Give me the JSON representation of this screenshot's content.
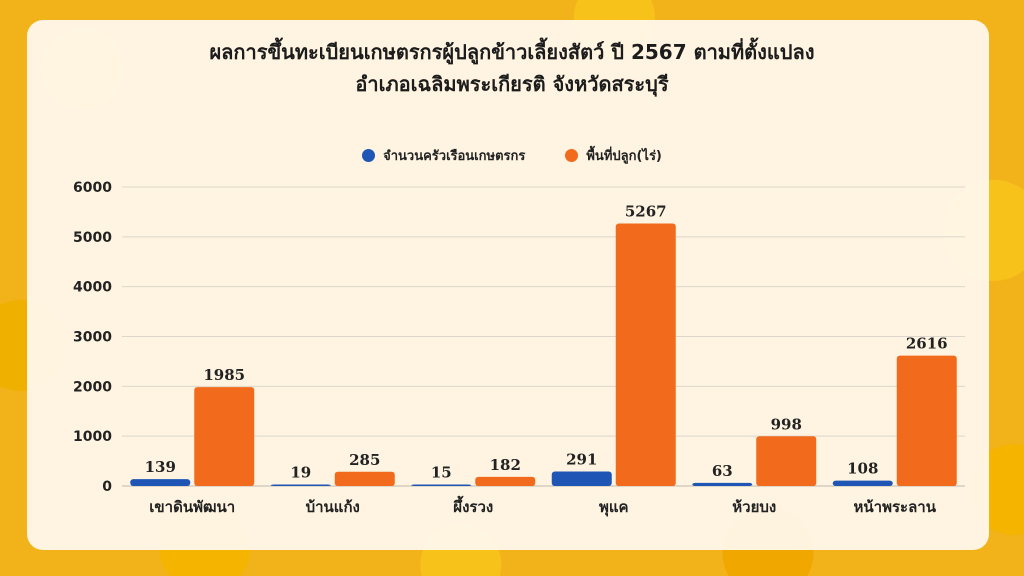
{
  "chart_data": {
    "type": "bar",
    "title": [
      "ผลการขึ้นทะเบียนเกษตรกรผู้ปลูกข้าวเลี้ยงสัตว์ ปี 2567 ตามที่ตั้งแปลง",
      "อำเภอเฉลิมพระเกียรติ  จังหวัดสระบุรี"
    ],
    "categories": [
      "เขาดินพัฒนา",
      "บ้านแก้ง",
      "ผึ้งรวง",
      "พุแค",
      "ห้วยบง",
      "หน้าพระลาน"
    ],
    "series": [
      {
        "name": "จำนวนครัวเรือนเกษตรกร",
        "values": [
          139,
          19,
          15,
          291,
          63,
          108
        ],
        "color": "#1f55b5"
      },
      {
        "name": "พื้นที่ปลูก(ไร่)",
        "values": [
          1985,
          285,
          182,
          5267,
          998,
          2616
        ],
        "color": "#f26a1b"
      }
    ],
    "ylim": [
      0,
      6000
    ],
    "yticks": [
      0,
      1000,
      2000,
      3000,
      4000,
      5000,
      6000
    ],
    "xlabel": "",
    "ylabel": "",
    "legend": "top-center",
    "grid": true
  }
}
